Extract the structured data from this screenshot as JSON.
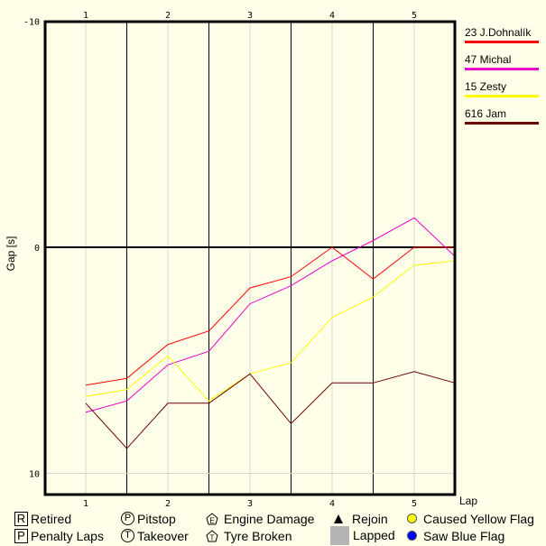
{
  "chart_data": {
    "type": "line",
    "title": "",
    "xlabel": "Lap",
    "ylabel": "Gap [s]",
    "ylim": [
      -10,
      10
    ],
    "y_inverted": true,
    "yticks": [
      "-10",
      "0",
      "10"
    ],
    "xticks": [
      "1",
      "2",
      "3",
      "4",
      "5"
    ],
    "grid": true,
    "legend_position": "right",
    "x": [
      1,
      1.5,
      2,
      2.5,
      3,
      3.5,
      4,
      4.5,
      5,
      5.5
    ],
    "series": [
      {
        "name": "23 J.Dohnalík",
        "color": "#FF0000",
        "values": [
          6.1,
          5.8,
          4.3,
          3.7,
          1.8,
          1.3,
          0.0,
          1.4,
          0.0,
          0.0
        ]
      },
      {
        "name": "47 Michal",
        "color": "#E800C8",
        "values": [
          7.3,
          6.8,
          5.2,
          4.6,
          2.5,
          1.7,
          0.6,
          -0.3,
          -1.3,
          0.4
        ]
      },
      {
        "name": "15 Zesty",
        "color": "#FFFF00",
        "values": [
          6.6,
          6.3,
          4.8,
          6.8,
          5.6,
          5.1,
          3.1,
          2.2,
          0.8,
          0.6
        ]
      },
      {
        "name": "616 Jam",
        "color": "#6B0000",
        "values": [
          6.9,
          8.9,
          6.9,
          6.9,
          5.6,
          7.8,
          6.0,
          6.0,
          5.5,
          6.0
        ]
      }
    ]
  },
  "legend": {
    "series": [
      {
        "name": "23 J.Dohnalík",
        "color": "#FF0000"
      },
      {
        "name": "47 Michal",
        "color": "#E800C8"
      },
      {
        "name": "15 Zesty",
        "color": "#FFFF00"
      },
      {
        "name": "616 Jam",
        "color": "#6B0000"
      }
    ],
    "symbols": {
      "retired": {
        "glyph": "R",
        "label": "Retired"
      },
      "penalty": {
        "glyph": "P",
        "label": "Penalty Laps"
      },
      "pitstop": {
        "glyph": "P",
        "label": "Pitstop"
      },
      "takeover": {
        "glyph": "T",
        "label": "Takeover"
      },
      "engine": {
        "glyph": "E",
        "label": "Engine Damage"
      },
      "tyre": {
        "glyph": "T",
        "label": "Tyre Broken"
      },
      "rejoin": {
        "label": "Rejoin"
      },
      "lapped": {
        "label": "Lapped"
      },
      "yellow": {
        "label": "Caused Yellow Flag",
        "color": "#FFFF00"
      },
      "blue": {
        "label": "Saw Blue Flag",
        "color": "#0000FF"
      }
    }
  }
}
